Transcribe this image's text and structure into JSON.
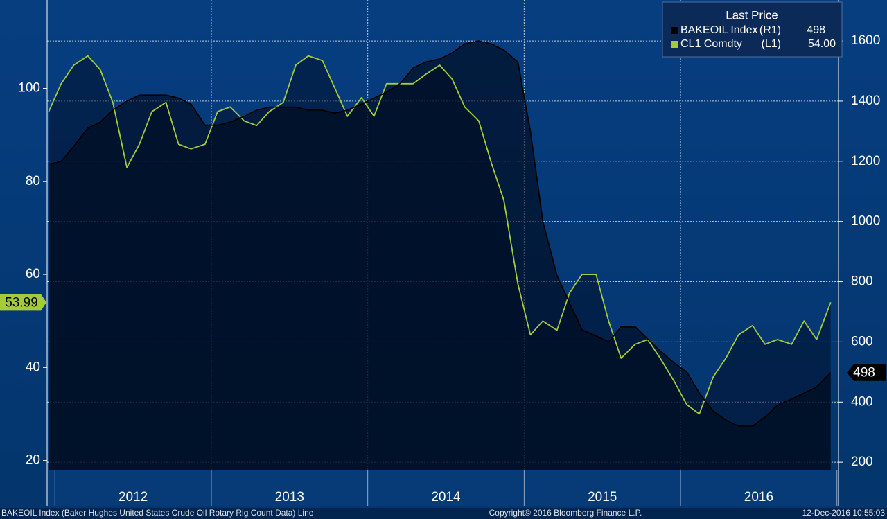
{
  "chart_data": {
    "type": "line",
    "legend_title": "Last Price",
    "x": [
      2011.96,
      2012.04,
      2012.12,
      2012.21,
      2012.29,
      2012.37,
      2012.46,
      2012.54,
      2012.62,
      2012.71,
      2012.79,
      2012.87,
      2012.96,
      2013.04,
      2013.12,
      2013.21,
      2013.29,
      2013.37,
      2013.46,
      2013.54,
      2013.62,
      2013.71,
      2013.79,
      2013.87,
      2013.96,
      2014.04,
      2014.12,
      2014.21,
      2014.29,
      2014.37,
      2014.46,
      2014.54,
      2014.62,
      2014.71,
      2014.79,
      2014.87,
      2014.96,
      2015.04,
      2015.12,
      2015.21,
      2015.29,
      2015.37,
      2015.46,
      2015.54,
      2015.62,
      2015.71,
      2015.79,
      2015.87,
      2015.96,
      2016.04,
      2016.12,
      2016.21,
      2016.29,
      2016.37,
      2016.46,
      2016.54,
      2016.62,
      2016.71,
      2016.79,
      2016.87,
      2016.96
    ],
    "xlim": [
      2011.95,
      2017.01
    ],
    "xticks": [
      2012,
      2013,
      2014,
      2015,
      2016,
      2017
    ],
    "x_labels": [
      {
        "value": 2012.5,
        "label": "2012"
      },
      {
        "value": 2013.5,
        "label": "2013"
      },
      {
        "value": 2014.5,
        "label": "2014"
      },
      {
        "value": 2015.5,
        "label": "2015"
      },
      {
        "value": 2016.5,
        "label": "2016"
      }
    ],
    "ylim": [
      18,
      119
    ],
    "yticks": [
      20,
      40,
      60,
      80,
      100
    ],
    "y2lim": [
      175,
      1736
    ],
    "y2ticks": [
      200,
      400,
      600,
      800,
      1000,
      1200,
      1400,
      1600
    ],
    "grid": true,
    "series": [
      {
        "name": "BAKEOIL Index",
        "axis_label": "(R1)",
        "legend_value": "498",
        "axis": "y2",
        "color": "#000000",
        "fill": "rgba(0,8,24,0.62)",
        "last_tag": 498,
        "values": [
          1190,
          1200,
          1250,
          1310,
          1330,
          1370,
          1400,
          1420,
          1420,
          1420,
          1410,
          1390,
          1320,
          1320,
          1330,
          1350,
          1370,
          1380,
          1380,
          1380,
          1370,
          1370,
          1360,
          1370,
          1390,
          1410,
          1430,
          1460,
          1510,
          1530,
          1540,
          1560,
          1590,
          1600,
          1590,
          1570,
          1530,
          1300,
          1000,
          820,
          730,
          640,
          620,
          600,
          650,
          650,
          610,
          570,
          530,
          500,
          430,
          370,
          340,
          320,
          320,
          350,
          390,
          410,
          430,
          450,
          498
        ]
      },
      {
        "name": "CL1 Comdty",
        "axis_label": "(L1)",
        "legend_value": "54.00",
        "axis": "y",
        "color": "#a4cc3a",
        "fill": "rgba(0,14,40,0.55)",
        "last_tag": 53.99,
        "values": [
          95,
          101,
          105,
          107,
          104,
          97,
          83,
          88,
          95,
          97,
          88,
          87,
          88,
          95,
          96,
          93,
          92,
          95,
          97,
          105,
          107,
          106,
          100,
          94,
          98,
          94,
          101,
          101,
          101,
          103,
          105,
          102,
          96,
          93,
          84,
          76,
          58,
          47,
          50,
          48,
          56,
          60,
          60,
          50,
          42,
          45,
          46,
          42,
          37,
          32,
          30,
          38,
          42,
          47,
          49,
          45,
          46,
          45,
          50,
          46,
          54
        ]
      }
    ],
    "footer_left": "BAKEOIL Index (Baker Hughes United States Crude Oil Rotary Rig Count Data) Line",
    "footer_center": "Copyright© 2016 Bloomberg Finance L.P.",
    "footer_right": "12-Dec-2016 10:55:03"
  }
}
